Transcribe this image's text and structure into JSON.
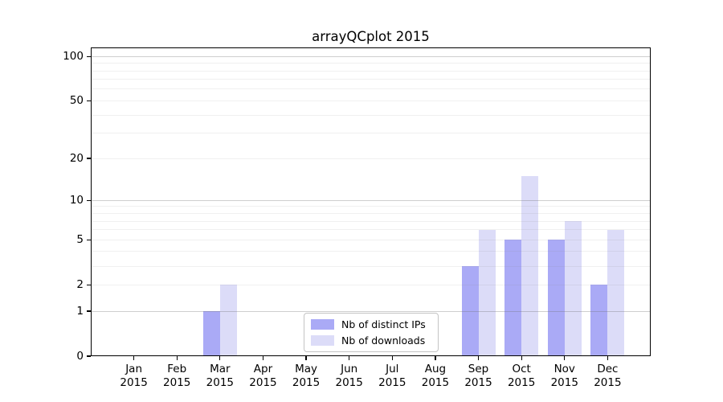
{
  "colors": {
    "background": "#ffffff",
    "spine": "#000000",
    "grid_major": "rgba(110,110,110,0.33)",
    "grid_minor": "rgba(128,128,128,0.12)",
    "legend_border": "#c4c4c4",
    "text": "#000000"
  },
  "chart_data": {
    "type": "bar",
    "title": "arrayQCplot 2015",
    "categories": [
      "Jan",
      "Feb",
      "Mar",
      "Apr",
      "May",
      "Jun",
      "Jul",
      "Aug",
      "Sep",
      "Oct",
      "Nov",
      "Dec"
    ],
    "tick_year": "2015",
    "series": [
      {
        "name": "Nb of distinct IPs",
        "color": "#aaaaf6",
        "values": [
          0,
          0,
          1,
          0,
          0,
          0,
          0,
          0,
          3,
          5,
          5,
          2
        ]
      },
      {
        "name": "Nb of downloads",
        "color": "#dcdcf8",
        "values": [
          0,
          0,
          2,
          0,
          0,
          0,
          0,
          0,
          6,
          15,
          7,
          6
        ]
      }
    ],
    "xlabel": "",
    "ylabel": "",
    "y_scale": "log1p",
    "ylim": [
      0,
      115
    ],
    "y_ticks": [
      0,
      1,
      2,
      5,
      10,
      20,
      50,
      100
    ],
    "y_tick_labels": [
      "0",
      "1",
      "2",
      "5",
      "10",
      "20",
      "50",
      "100"
    ],
    "grid_major": [
      1,
      10,
      100
    ],
    "grid_minor": [
      2,
      3,
      4,
      5,
      6,
      7,
      8,
      9,
      20,
      30,
      40,
      50,
      60,
      70,
      80,
      90
    ],
    "grid": "on",
    "legend_position": "inside-bottom-center"
  }
}
